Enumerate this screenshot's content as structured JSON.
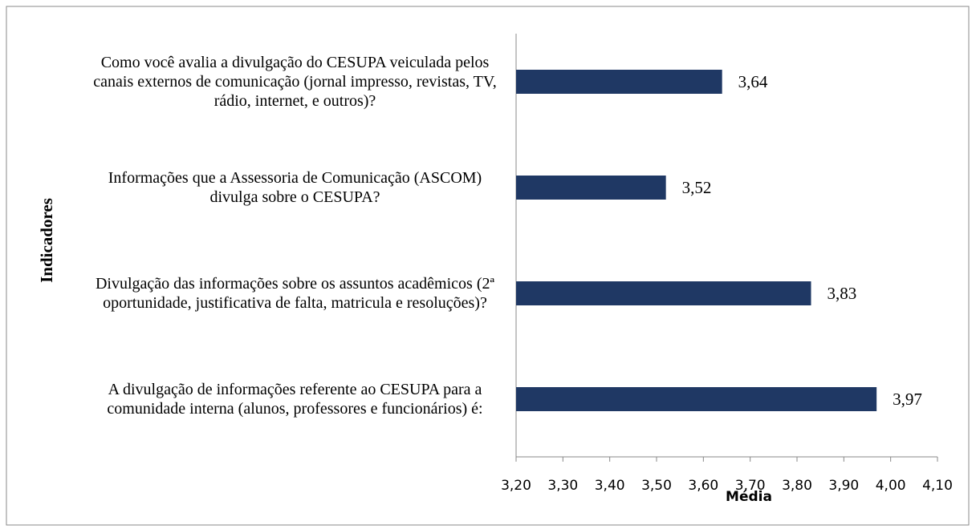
{
  "chart_data": {
    "type": "bar",
    "orientation": "horizontal",
    "categories": [
      "Como você avalia a divulgação do CESUPA veiculada pelos canais externos de comunicação (jornal impresso, revistas, TV, rádio, internet, e outros)?",
      "Informações que a Assessoria de Comunicação (ASCOM) divulga sobre o CESUPA?",
      "Divulgação das informações sobre os assuntos acadêmicos (2ª oportunidade, justificativa de falta, matricula e resoluções)?",
      "A divulgação de informações referente ao CESUPA para a comunidade interna (alunos, professores e funcionários) é:"
    ],
    "values": [
      3.64,
      3.52,
      3.83,
      3.97
    ],
    "value_labels": [
      "3,64",
      "3,52",
      "3,83",
      "3,97"
    ],
    "color": "#1f3864",
    "xlabel": "Média",
    "ylabel": "Indicadores",
    "xlim": [
      3.2,
      4.1
    ],
    "xticks": [
      {
        "value": 3.2,
        "label": "3,20"
      },
      {
        "value": 3.3,
        "label": "3,30"
      },
      {
        "value": 3.4,
        "label": "3,40"
      },
      {
        "value": 3.5,
        "label": "3,50"
      },
      {
        "value": 3.6,
        "label": "3,60"
      },
      {
        "value": 3.7,
        "label": "3,70"
      },
      {
        "value": 3.8,
        "label": "3,80"
      },
      {
        "value": 3.9,
        "label": "3,90"
      },
      {
        "value": 4.0,
        "label": "4,00"
      },
      {
        "value": 4.1,
        "label": "4,10"
      }
    ]
  }
}
